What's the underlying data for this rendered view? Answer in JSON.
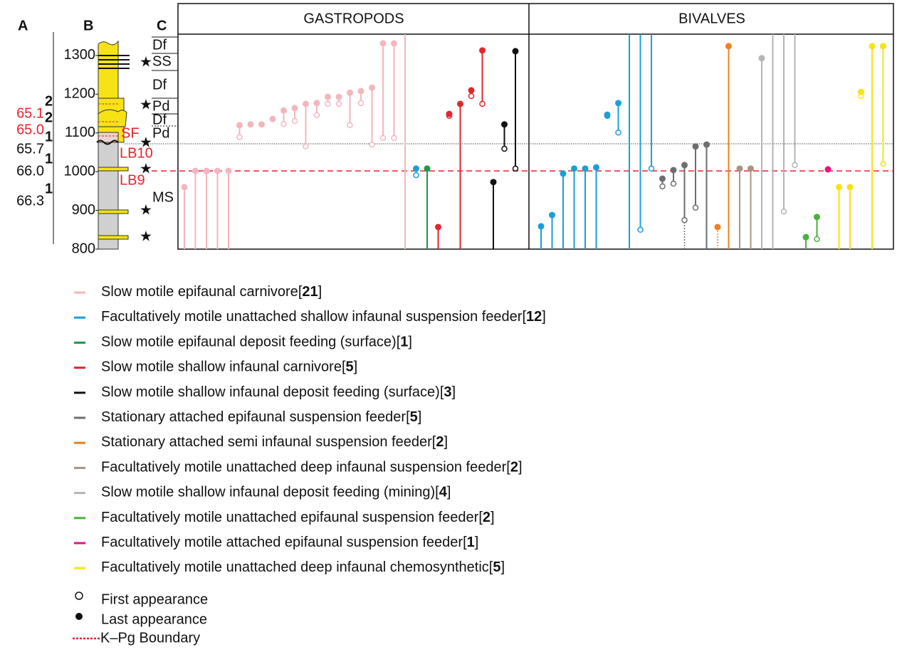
{
  "chart_data": {
    "type": "range",
    "column_labels": [
      "A",
      "B",
      "C"
    ],
    "age_labels": [
      {
        "label": "65.1",
        "sup": "2",
        "red": true
      },
      {
        "label": "65.0",
        "sup": "2",
        "red": true
      },
      {
        "label": "65.7",
        "sup": "1",
        "red": false
      },
      {
        "label": "66.0",
        "sup": "1",
        "red": false
      },
      {
        "label": "66.3",
        "sup": "1",
        "red": false
      }
    ],
    "units": [
      "Df",
      "SS",
      "Df",
      "Pd",
      "Df",
      "Pd",
      "MS"
    ],
    "samples": [
      "SF",
      "LB10",
      "LB9"
    ],
    "ylim": [
      800,
      1434
    ],
    "yticks": [
      800,
      900,
      1000,
      1100,
      1200,
      1300
    ],
    "kpg_boundary": 1002,
    "dotted_line": 1072,
    "groups": [
      {
        "name": "Slow motile epifaunal carnivore",
        "color": "#f4b6bd",
        "count": 21
      },
      {
        "name": "Facultatively motile unattached shallow infaunal suspension feeder",
        "color": "#1a9fd9",
        "count": 12
      },
      {
        "name": "Slow motile epifaunal deposit feeding (surface)",
        "color": "#1a9a4a",
        "count": 1
      },
      {
        "name": "Slow motile shallow infaunal carnivore",
        "color": "#e3262e",
        "count": 5
      },
      {
        "name": "Slow motile shallow infaunal deposit feeding (surface)",
        "color": "#111111",
        "count": 3
      },
      {
        "name": "Stationary attached epifaunal suspension feeder",
        "color": "#6d6e71",
        "count": 5
      },
      {
        "name": "Stationary attached semi infaunal suspension feeder",
        "color": "#f0801e",
        "count": 2
      },
      {
        "name": "Facultatively motile unattached deep infaunal suspension feeder",
        "color": "#a89580",
        "count": 2
      },
      {
        "name": "Slow motile shallow infaunal deposit feeding (mining)",
        "color": "#b5b5b5",
        "count": 4
      },
      {
        "name": "Facultatively motile unattached epifaunal suspension feeder",
        "color": "#4caf3f",
        "count": 2
      },
      {
        "name": "Facultatively motile attached epifaunal suspension feeder",
        "color": "#e6157e",
        "count": 1
      },
      {
        "name": "Facultatively motile unattached deep infaunal chemosynthetic",
        "color": "#f7e315",
        "count": 5
      }
    ],
    "legend_brackets": [
      "[",
      "]"
    ],
    "first_label": "First appearance",
    "last_label": "Last appearance",
    "boundary_label": "K–Pg Boundary",
    "panels": [
      {
        "title": "GASTROPODS",
        "taxa": [
          {
            "group": 0,
            "first": null,
            "last": 960
          },
          {
            "group": 0,
            "first": null,
            "last": 1002
          },
          {
            "group": 0,
            "first": null,
            "last": 1002
          },
          {
            "group": 0,
            "first": null,
            "last": 1002
          },
          {
            "group": 0,
            "first": null,
            "last": 1002
          },
          {
            "group": 0,
            "first": 1089,
            "last": 1120
          },
          {
            "group": 0,
            "first": 1122,
            "last": 1122
          },
          {
            "group": 0,
            "first": 1122,
            "last": 1122
          },
          {
            "group": 0,
            "first": 1136,
            "last": 1136
          },
          {
            "group": 0,
            "first": 1123,
            "last": 1158
          },
          {
            "group": 0,
            "first": 1131,
            "last": 1164
          },
          {
            "group": 0,
            "first": 1065,
            "last": 1175
          },
          {
            "group": 0,
            "first": 1146,
            "last": 1177
          },
          {
            "group": 0,
            "first": 1175,
            "last": 1193
          },
          {
            "group": 0,
            "first": 1175,
            "last": 1193
          },
          {
            "group": 0,
            "first": 1120,
            "last": 1204
          },
          {
            "group": 0,
            "first": 1177,
            "last": 1208
          },
          {
            "group": 0,
            "first": 1070,
            "last": 1217
          },
          {
            "group": 0,
            "first": 1087,
            "last": 1331
          },
          {
            "group": 0,
            "first": 1087,
            "last": 1331
          },
          {
            "group": 0,
            "first": null,
            "last": null
          },
          {
            "group": 1,
            "first": 991,
            "last": 1008
          },
          {
            "group": 2,
            "first": null,
            "last": 1008
          },
          {
            "group": 3,
            "first": null,
            "last": 857
          },
          {
            "group": 3,
            "first": 1144,
            "last": 1149
          },
          {
            "group": 3,
            "first": null,
            "last": 1175
          },
          {
            "group": 3,
            "first": 1195,
            "last": 1210
          },
          {
            "group": 3,
            "first": 1175,
            "last": 1313
          },
          {
            "group": 4,
            "first": null,
            "last": 973
          },
          {
            "group": 4,
            "first": 1059,
            "last": 1122
          },
          {
            "group": 4,
            "first": 1008,
            "last": 1311
          }
        ]
      },
      {
        "title": "BIVALVES",
        "taxa": [
          {
            "group": 1,
            "first": null,
            "last": 859
          },
          {
            "group": 1,
            "first": null,
            "last": 888
          },
          {
            "group": 1,
            "first": null,
            "last": 995
          },
          {
            "group": 1,
            "first": null,
            "last": 1008
          },
          {
            "group": 1,
            "first": null,
            "last": 1008
          },
          {
            "group": 1,
            "first": null,
            "last": 1011
          },
          {
            "group": 1,
            "first": 1144,
            "last": 1147
          },
          {
            "group": 1,
            "first": 1101,
            "last": 1177
          },
          {
            "group": 1,
            "first": null,
            "last": null
          },
          {
            "group": 1,
            "first": 850,
            "last": null
          },
          {
            "group": 1,
            "first": 1008,
            "last": null
          },
          {
            "group": 5,
            "first": 962,
            "last": 982
          },
          {
            "group": 5,
            "first": 969,
            "last": 1004
          },
          {
            "group": 5,
            "first": 875,
            "last": 1017,
            "dotted": true
          },
          {
            "group": 5,
            "first": 907,
            "last": 1065
          },
          {
            "group": 5,
            "first": null,
            "last": 1070
          },
          {
            "group": 6,
            "first": null,
            "last": 857,
            "dotted": true
          },
          {
            "group": 6,
            "first": null,
            "last": 1324
          },
          {
            "group": 7,
            "first": null,
            "last": 1008
          },
          {
            "group": 7,
            "first": null,
            "last": 1008
          },
          {
            "group": 8,
            "first": null,
            "last": 1293
          },
          {
            "group": 8,
            "first": null,
            "last": null
          },
          {
            "group": 8,
            "first": 897,
            "last": null
          },
          {
            "group": 8,
            "first": 1017,
            "last": null
          },
          {
            "group": 9,
            "first": null,
            "last": 831
          },
          {
            "group": 9,
            "first": 826,
            "last": 883
          },
          {
            "group": 10,
            "first": 1006,
            "last": 1006
          },
          {
            "group": 11,
            "first": null,
            "last": 960
          },
          {
            "group": 11,
            "first": null,
            "last": 960
          },
          {
            "group": 11,
            "first": 1195,
            "last": 1206
          },
          {
            "group": 11,
            "first": null,
            "last": 1324
          },
          {
            "group": 11,
            "first": 1020,
            "last": 1324
          }
        ]
      }
    ]
  }
}
